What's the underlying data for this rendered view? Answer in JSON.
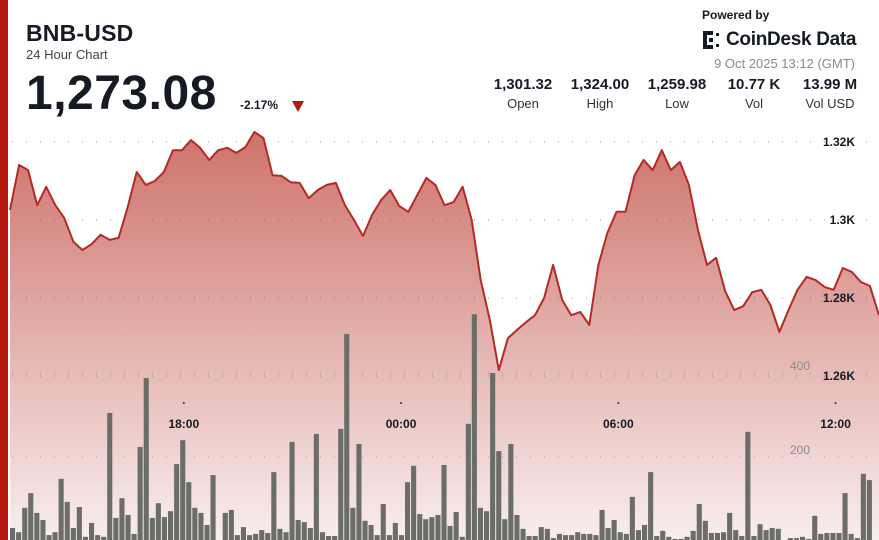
{
  "header": {
    "title": "BNB-USD",
    "subtitle": "24 Hour Chart",
    "price": "1,273.08",
    "change": "-2.17%",
    "change_direction": "down",
    "powered_by": "Powered by",
    "brand": "CoinDesk Data",
    "timestamp": "9 Oct 2025 13:12 (GMT)"
  },
  "stats": [
    {
      "value": "1,301.32",
      "label": "Open"
    },
    {
      "value": "1,324.00",
      "label": "High"
    },
    {
      "value": "1,259.98",
      "label": "Low"
    },
    {
      "value": "10.77 K",
      "label": "Vol"
    },
    {
      "value": "13.99 M",
      "label": "Vol USD"
    }
  ],
  "colors": {
    "accent": "#b3170d",
    "line": "#b52a22",
    "volume_bar": "#6b6e68",
    "area_top": "#cd7069",
    "area_bottom": "#f8eeed"
  },
  "chart_data": {
    "type": "area",
    "start_time": "13:12",
    "interval_minutes": 15,
    "price_axis": {
      "ticks": [
        "1.32K",
        "1.3K",
        "1.28K",
        "1.26K"
      ],
      "tick_values": [
        1320,
        1300,
        1280,
        1260
      ],
      "ylim": [
        1251,
        1327
      ]
    },
    "time_axis": {
      "ticks": [
        "18:00",
        "00:00",
        "06:00",
        "12:00"
      ]
    },
    "price": [
      1302.6,
      1314.1,
      1312.8,
      1303.8,
      1308.5,
      1303.8,
      1300.5,
      1294.4,
      1292.3,
      1293.8,
      1296.2,
      1294.9,
      1295.4,
      1303.3,
      1312.3,
      1309.0,
      1310.0,
      1312.3,
      1317.9,
      1317.9,
      1320.5,
      1318.5,
      1315.4,
      1317.9,
      1318.5,
      1317.2,
      1318.7,
      1322.6,
      1321.0,
      1311.5,
      1311.3,
      1309.7,
      1309.5,
      1305.6,
      1307.7,
      1309.0,
      1309.5,
      1303.8,
      1300.0,
      1295.9,
      1301.3,
      1305.1,
      1307.7,
      1303.6,
      1302.1,
      1306.4,
      1310.8,
      1309.0,
      1303.8,
      1304.6,
      1308.5,
      1300.0,
      1284.6,
      1274.4,
      1261.5,
      1269.7,
      1271.8,
      1273.8,
      1275.6,
      1280.0,
      1288.5,
      1279.5,
      1275.6,
      1276.4,
      1273.1,
      1288.5,
      1296.7,
      1302.1,
      1302.1,
      1311.5,
      1315.4,
      1312.8,
      1317.9,
      1312.8,
      1314.9,
      1309.0,
      1297.4,
      1288.5,
      1290.3,
      1281.8,
      1276.9,
      1277.9,
      1281.5,
      1282.1,
      1278.2,
      1271.3,
      1276.9,
      1282.1,
      1285.4,
      1284.6,
      1282.8,
      1282.1,
      1287.7,
      1286.7,
      1284.1,
      1283.1,
      1275.6
    ],
    "volume_axis": {
      "ticks": [
        "400",
        "200"
      ],
      "tick_values": [
        400,
        200
      ]
    },
    "volume_interval_minutes": 10,
    "volume": [
      31,
      21,
      79,
      114,
      67,
      50,
      14,
      21,
      148,
      93,
      31,
      81,
      10,
      43,
      14,
      10,
      305,
      55,
      102,
      62,
      17,
      224,
      388,
      55,
      90,
      57,
      71,
      183,
      240,
      140,
      79,
      67,
      38,
      157,
      2,
      67,
      74,
      14,
      33,
      14,
      17,
      26,
      19,
      164,
      29,
      21,
      236,
      50,
      45,
      31,
      255,
      21,
      12,
      12,
      267,
      493,
      79,
      231,
      48,
      38,
      14,
      88,
      14,
      43,
      14,
      140,
      179,
      64,
      52,
      57,
      62,
      181,
      36,
      69,
      10,
      279,
      540,
      79,
      71,
      400,
      214,
      52,
      231,
      62,
      29,
      12,
      12,
      33,
      29,
      7,
      17,
      14,
      14,
      21,
      17,
      17,
      14,
      74,
      31,
      50,
      21,
      17,
      105,
      26,
      38,
      164,
      12,
      24,
      10,
      5,
      5,
      10,
      24,
      88,
      48,
      19,
      19,
      21,
      67,
      26,
      12,
      260,
      12,
      40,
      26,
      31,
      29,
      2,
      7,
      7,
      10,
      5,
      60,
      17,
      19,
      19,
      19,
      114,
      17,
      7,
      160,
      145,
      2
    ],
    "grid": true
  }
}
